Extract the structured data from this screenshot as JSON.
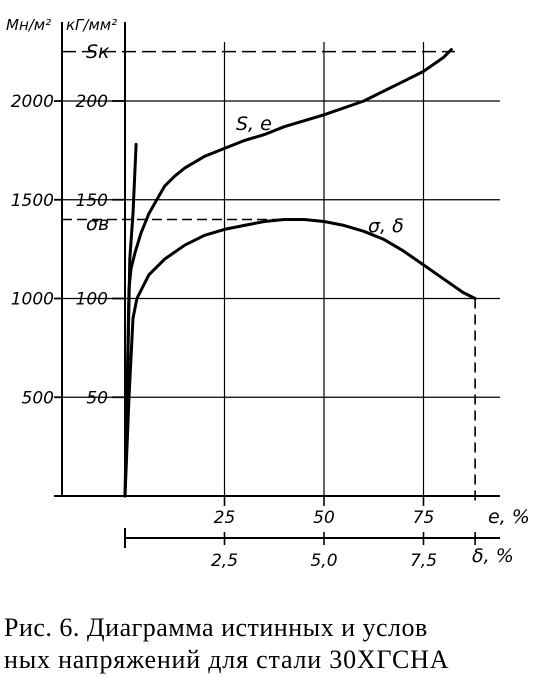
{
  "chart_data": {
    "type": "line",
    "title": "",
    "axes": {
      "y_left_label": "Мн/м²",
      "y_right_label": "кГ/мм²",
      "y_left_ticks": [
        "500",
        "1000",
        "1500",
        "2000"
      ],
      "y_right_ticks": [
        "50",
        "100",
        "150",
        "200"
      ],
      "ylim_kgf_mm2": [
        0,
        230
      ],
      "x_top_label": "е, %",
      "x_top_ticks": [
        "25",
        "50",
        "75"
      ],
      "x_top_lim": [
        0,
        95
      ],
      "x_bottom_label": "δ, %",
      "x_bottom_ticks": [
        "2,5",
        "5,0",
        "7,5"
      ],
      "x_bottom_lim": [
        0,
        9.5
      ],
      "grid": true
    },
    "annotations": {
      "sk_label": "Sк",
      "sk_value": 225,
      "sigma_b_label": "σв",
      "sigma_b_value": 140
    },
    "series": [
      {
        "name": "S, e",
        "x_axis": "е, %",
        "points": [
          [
            0,
            0
          ],
          [
            0.5,
            50
          ],
          [
            1,
            105
          ],
          [
            1.5,
            115
          ],
          [
            2.5,
            123
          ],
          [
            4,
            133
          ],
          [
            6,
            143
          ],
          [
            8,
            150
          ],
          [
            10,
            157
          ],
          [
            12.5,
            162
          ],
          [
            15,
            166
          ],
          [
            20,
            172
          ],
          [
            25,
            176
          ],
          [
            30,
            180
          ],
          [
            35,
            183
          ],
          [
            40,
            187
          ],
          [
            50,
            193
          ],
          [
            60,
            200
          ],
          [
            65,
            205
          ],
          [
            70,
            210
          ],
          [
            75,
            215
          ],
          [
            80,
            222
          ],
          [
            82,
            226
          ]
        ]
      },
      {
        "name": "σ, δ",
        "x_axis": "δ, %",
        "points": [
          [
            0,
            0
          ],
          [
            0.1,
            50
          ],
          [
            0.2,
            90
          ],
          [
            0.3,
            100
          ],
          [
            0.6,
            112
          ],
          [
            1,
            120
          ],
          [
            1.5,
            127
          ],
          [
            2,
            132
          ],
          [
            2.5,
            135
          ],
          [
            3,
            137
          ],
          [
            3.5,
            139
          ],
          [
            4,
            140
          ],
          [
            4.5,
            140
          ],
          [
            5,
            139
          ],
          [
            5.5,
            137
          ],
          [
            6,
            134
          ],
          [
            6.5,
            130
          ],
          [
            7,
            124
          ],
          [
            7.5,
            117
          ],
          [
            8,
            110
          ],
          [
            8.5,
            103
          ],
          [
            8.8,
            100
          ]
        ]
      },
      {
        "name": "",
        "x_axis": "е, %",
        "points": [
          [
            0.4,
            35
          ],
          [
            1.2,
            120
          ],
          [
            2,
            143
          ],
          [
            2.8,
            178
          ]
        ]
      }
    ]
  },
  "caption": {
    "line1": "Рис. 6. Диаграмма истинных и услов",
    "line2": "ных напряжений для стали 30ХГСНА"
  }
}
